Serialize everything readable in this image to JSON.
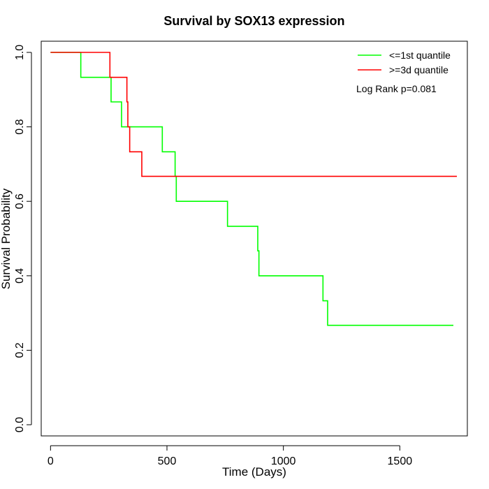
{
  "chart_data": {
    "type": "line",
    "title": "Survival by SOX13 expression",
    "xlabel": "Time (Days)",
    "ylabel": "Survival Probability",
    "xlim": [
      -40,
      1790
    ],
    "ylim": [
      -0.03,
      1.03
    ],
    "xticks": [
      0,
      500,
      1000,
      1500
    ],
    "yticks": [
      0.0,
      0.2,
      0.4,
      0.6,
      0.8,
      1.0
    ],
    "xtick_labels": [
      "0",
      "500",
      "1000",
      "1500"
    ],
    "ytick_labels": [
      "0.0",
      "0.2",
      "0.4",
      "0.6",
      "0.8",
      "1.0"
    ],
    "legend_position": "top-right",
    "annotation": "Log Rank p=0.081",
    "series": [
      {
        "name": "<=1st quantile",
        "color": "#00ff00",
        "step": "post",
        "x": [
          0,
          130,
          260,
          305,
          480,
          535,
          540,
          760,
          890,
          895,
          1170,
          1190,
          1730
        ],
        "y": [
          1.0,
          0.933,
          0.867,
          0.8,
          0.733,
          0.667,
          0.6,
          0.533,
          0.467,
          0.4,
          0.333,
          0.267,
          0.267
        ]
      },
      {
        "name": ">=3d quantile",
        "color": "#ff0000",
        "step": "post",
        "x": [
          0,
          255,
          328,
          332,
          340,
          392,
          1745
        ],
        "y": [
          1.0,
          0.933,
          0.867,
          0.8,
          0.733,
          0.667,
          0.667
        ]
      }
    ]
  }
}
